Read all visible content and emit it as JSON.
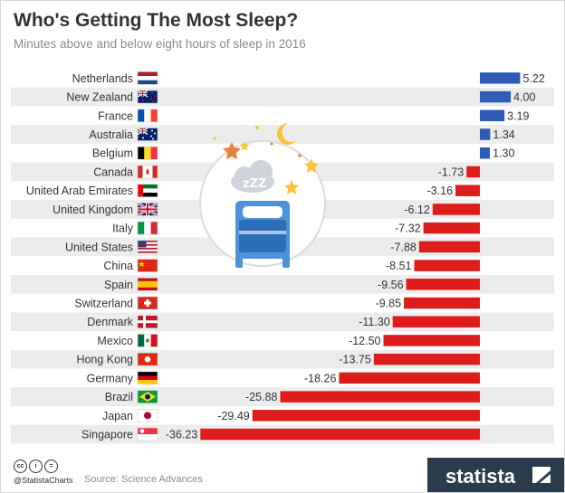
{
  "header": {
    "title": "Who's Getting The Most Sleep?",
    "subtitle": "Minutes above and below eight hours of sleep in 2016"
  },
  "footer": {
    "handle": "@StatistaCharts",
    "source": "Source: Science Advances",
    "brand": "statista",
    "license_icons": [
      "cc",
      "i",
      "="
    ]
  },
  "colors": {
    "positive": "#2e5cb8",
    "negative": "#dd1c1c",
    "stripe": "#ececec"
  },
  "icons": [
    "sleep-illustration-icon",
    "moon-icon",
    "star-icon",
    "cloud-icon",
    "bed-icon",
    "creative-commons-icon",
    "statista-logo-icon"
  ],
  "chart_data": {
    "type": "bar",
    "orientation": "horizontal",
    "title": "Who's Getting The Most Sleep?",
    "subtitle": "Minutes above and below eight hours of sleep in 2016",
    "categories": [
      "Netherlands",
      "New Zealand",
      "France",
      "Australia",
      "Belgium",
      "Canada",
      "United Arab Emirates",
      "United Kingdom",
      "Italy",
      "United States",
      "China",
      "Spain",
      "Switzerland",
      "Denmark",
      "Mexico",
      "Hong Kong",
      "Germany",
      "Brazil",
      "Japan",
      "Singapore"
    ],
    "values": [
      5.22,
      4.0,
      3.19,
      1.34,
      1.3,
      -1.73,
      -3.16,
      -6.12,
      -7.32,
      -7.88,
      -8.51,
      -9.56,
      -9.85,
      -11.3,
      -12.5,
      -13.75,
      -18.26,
      -25.88,
      -29.49,
      -36.23
    ],
    "value_labels": [
      "5.22",
      "4.00",
      "3.19",
      "1.34",
      "1.30",
      "-1.73",
      "-3.16",
      "-6.12",
      "-7.32",
      "-7.88",
      "-8.51",
      "-9.56",
      "-9.85",
      "-11.30",
      "-12.50",
      "-13.75",
      "-18.26",
      "-25.88",
      "-29.49",
      "-36.23"
    ],
    "flags": [
      "nl",
      "nz",
      "fr",
      "au",
      "be",
      "ca",
      "ae",
      "gb",
      "it",
      "us",
      "cn",
      "es",
      "ch",
      "dk",
      "mx",
      "hk",
      "de",
      "br",
      "jp",
      "sg"
    ],
    "xlim": [
      -36.23,
      5.22
    ],
    "grid": false,
    "legend": "none",
    "source": "Source: Science Advances"
  }
}
